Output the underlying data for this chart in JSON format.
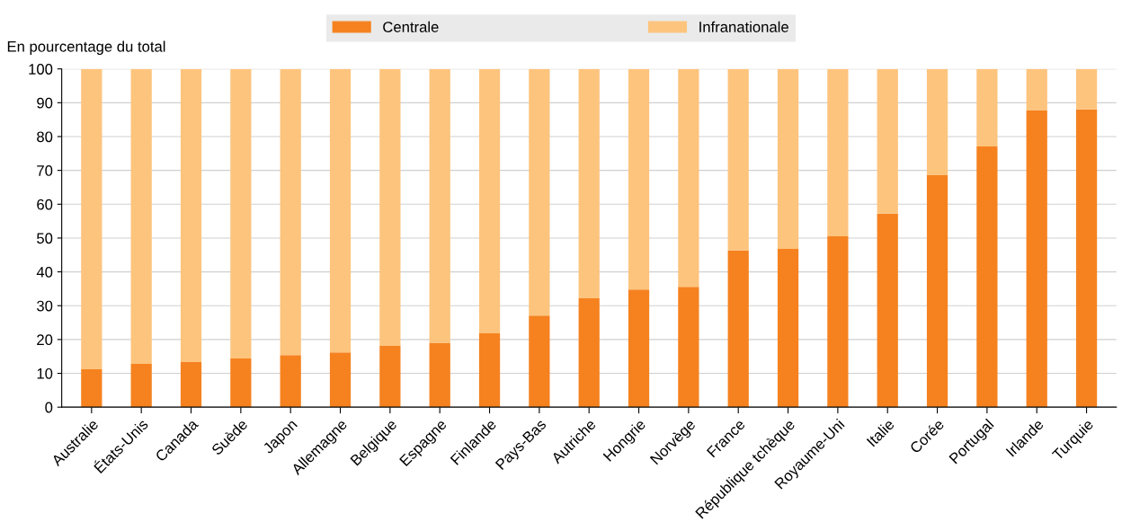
{
  "chart_data": {
    "type": "bar",
    "stacked": true,
    "ylabel": "En pourcentage du total",
    "categories": [
      "Australie",
      "États-Unis",
      "Canada",
      "Suède",
      "Japon",
      "Allemagne",
      "Belgique",
      "Espagne",
      "Finlande",
      "Pays-Bas",
      "Autriche",
      "Hongrie",
      "Norvège",
      "France",
      "République tchèque",
      "Royaume-Uni",
      "Italie",
      "Corée",
      "Portugal",
      "Irlande",
      "Turquie"
    ],
    "series": [
      {
        "name": "Centrale",
        "color": "#f5821f",
        "values": [
          11.2,
          12.8,
          13.3,
          14.4,
          15.4,
          16.2,
          18.1,
          18.9,
          21.8,
          27.1,
          32.2,
          34.8,
          35.6,
          46.3,
          46.8,
          50.5,
          57.2,
          68.6,
          77.1,
          87.8,
          88.0
        ]
      },
      {
        "name": "Infranationale",
        "color": "#fdc47d",
        "values": [
          88.8,
          87.2,
          86.7,
          85.6,
          84.6,
          83.8,
          81.9,
          81.1,
          78.2,
          72.9,
          67.8,
          65.2,
          64.4,
          53.7,
          53.2,
          49.5,
          42.8,
          31.4,
          22.9,
          12.2,
          12.0
        ]
      }
    ],
    "ylim": [
      0,
      100
    ],
    "yticks": [
      0,
      10,
      20,
      30,
      40,
      50,
      60,
      70,
      80,
      90,
      100
    ],
    "grid": "y",
    "legend": "top"
  }
}
